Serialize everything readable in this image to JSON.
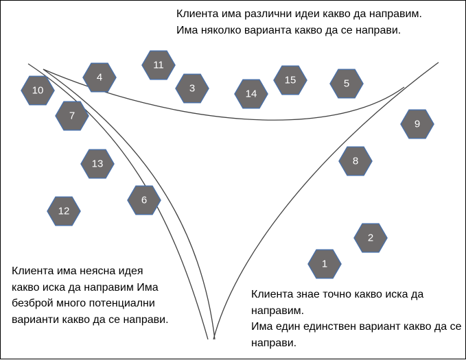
{
  "captions": {
    "top": [
      "Клиента има различни идеи какво да направим.",
      "Има няколко варианта какво да се направи."
    ],
    "left": [
      "Клиента има неясна идея какво иска да направим Има безброй много потенциални варианти какво да се направи."
    ],
    "right": [
      "Клиента знае точно какво иска да направим.",
      "Има един единствен вариант какво да се направи."
    ]
  },
  "hexagons": [
    "1",
    "2",
    "3",
    "4",
    "5",
    "6",
    "7",
    "8",
    "9",
    "10",
    "11",
    "12",
    "13",
    "14",
    "15"
  ],
  "colors": {
    "hexagon_fill": "#6e6b6b",
    "hexagon_stroke": "#4a6fa5",
    "curve": "#404040",
    "text": "#ffffff"
  }
}
